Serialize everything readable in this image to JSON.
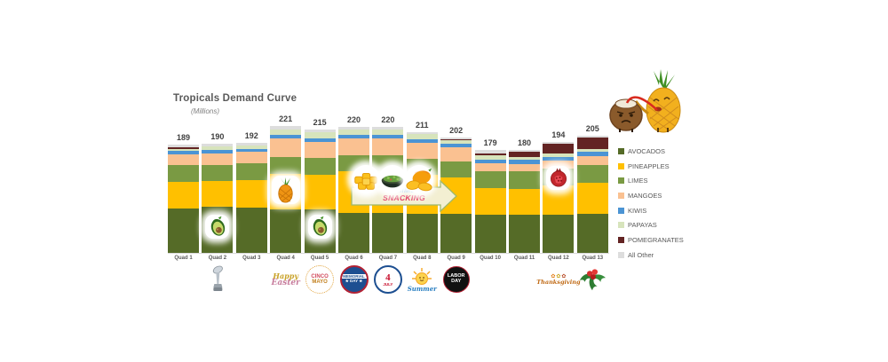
{
  "title": "Tropicals Demand Curve",
  "subtitle": "(Millions)",
  "chart_data": {
    "type": "bar",
    "stacked": true,
    "grid": false,
    "legend_position": "right",
    "value_labels": "totals shown above each bar",
    "categories": [
      "Quad 1",
      "Quad 2",
      "Quad 3",
      "Quad 4",
      "Quad 5",
      "Quad 6",
      "Quad 7",
      "Quad 8",
      "Quad 9",
      "Quad 10",
      "Quad 11",
      "Quad 12",
      "Quad 13"
    ],
    "totals": [
      189,
      190,
      192,
      221,
      215,
      220,
      220,
      211,
      202,
      179,
      180,
      194,
      205
    ],
    "series": [
      {
        "name": "AVOCADOS",
        "color": "#556b27",
        "values": [
          78,
          80,
          79,
          76,
          76,
          70,
          70,
          68,
          68,
          67,
          67,
          67,
          68
        ]
      },
      {
        "name": "PINEAPPLES",
        "color": "#ffc000",
        "values": [
          46,
          45,
          48,
          62,
          60,
          73,
          72,
          68,
          64,
          46,
          45,
          50,
          55
        ]
      },
      {
        "name": "LIMES",
        "color": "#7a9a43",
        "values": [
          29,
          29,
          29,
          30,
          30,
          28,
          29,
          28,
          28,
          30,
          30,
          30,
          31
        ]
      },
      {
        "name": "MANGOES",
        "color": "#fac191",
        "values": [
          19,
          20,
          20,
          32,
          28,
          29,
          29,
          28,
          24,
          13,
          13,
          14,
          15
        ]
      },
      {
        "name": "KIWIS",
        "color": "#4b94d4",
        "values": [
          6,
          6,
          6,
          6,
          6,
          6,
          6,
          6,
          6,
          7,
          7,
          7,
          7
        ]
      },
      {
        "name": "PAPAYAS",
        "color": "#d7e4bc",
        "values": [
          4,
          6,
          6,
          10,
          10,
          10,
          10,
          9,
          7,
          7,
          6,
          5,
          5
        ]
      },
      {
        "name": "POMEGRANATES",
        "color": "#632423",
        "values": [
          3,
          0,
          0,
          0,
          0,
          0,
          0,
          0,
          1,
          4,
          8,
          17,
          20
        ]
      },
      {
        "name": "All Other",
        "color": "#dddddd",
        "values": [
          4,
          4,
          4,
          5,
          5,
          4,
          4,
          4,
          4,
          5,
          4,
          4,
          4
        ]
      }
    ]
  },
  "banner": {
    "line1": "SUMMER",
    "line2": "SNACKING",
    "foods": [
      "pineapple-chunks",
      "guacamole",
      "mango"
    ]
  },
  "in_bar_icons": [
    {
      "category": "Quad 2",
      "icon": "avocado"
    },
    {
      "category": "Quad 4",
      "icon": "pineapple"
    },
    {
      "category": "Quad 5",
      "icon": "avocado"
    },
    {
      "category": "Quad 12",
      "icon": "pomegranate"
    }
  ],
  "holiday_badges": [
    {
      "category": "Quad 2",
      "icon": "super-bowl-trophy",
      "label": ""
    },
    {
      "category": "Quad 4",
      "icon": "happy-easter",
      "label": "Happy Easter"
    },
    {
      "category": "Quad 5",
      "icon": "cinco-de-mayo",
      "label": "CINCO MAYO"
    },
    {
      "category": "Quad 6",
      "icon": "memorial-day",
      "label": "MEMORIAL DAY"
    },
    {
      "category": "Quad 7",
      "icon": "fourth-of-july",
      "label": "4 JULY"
    },
    {
      "category": "Quad 8",
      "icon": "summer-sun",
      "label": "Summer"
    },
    {
      "category": "Quad 9",
      "icon": "labor-day",
      "label": "LABOR DAY"
    },
    {
      "category": "Quad 12",
      "icon": "thanksgiving",
      "label": "Thanksgiving"
    },
    {
      "category": "Quad 13",
      "icon": "christmas-holly",
      "label": ""
    }
  ]
}
